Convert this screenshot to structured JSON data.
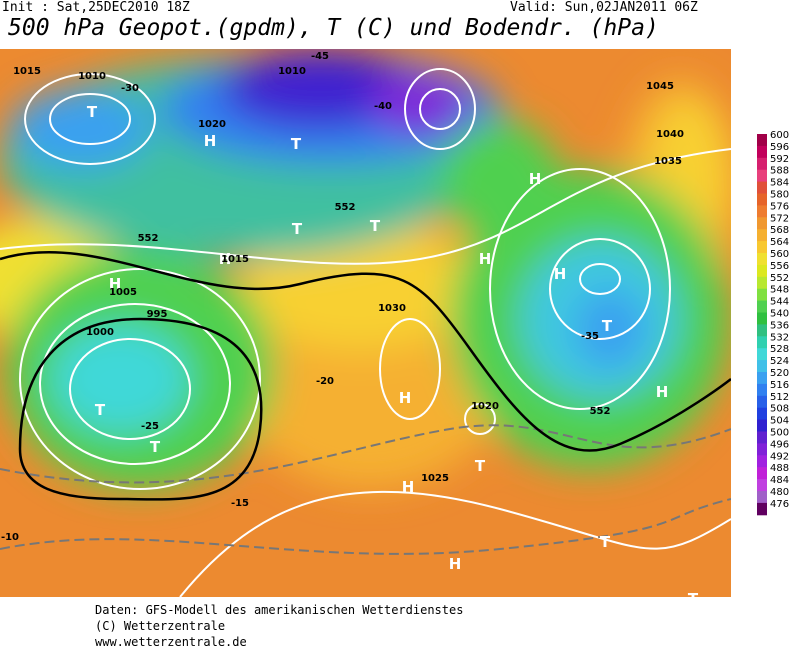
{
  "header": {
    "init": "Init : Sat,25DEC2010 18Z",
    "valid": "Valid: Sun,02JAN2011 06Z",
    "title": "500 hPa Geopot.(gpdm), T (C) und Bodendr. (hPa)"
  },
  "map": {
    "labels": [
      "T",
      "T",
      "T",
      "T",
      "T",
      "T",
      "H",
      "H",
      "H",
      "H",
      "H",
      "H",
      "H",
      "H",
      "T",
      "T",
      "H",
      "H",
      "T",
      "T",
      "1010",
      "1005",
      "995",
      "1000",
      "1020",
      "1015",
      "1030",
      "1025",
      "1020",
      "1015",
      "1010",
      "1045",
      "1040",
      "1035",
      "-30",
      "-25",
      "-20",
      "-15",
      "-10",
      "-35",
      "-40",
      "-45",
      "552",
      "552",
      "552"
    ]
  },
  "colorbar": {
    "levels": [
      600,
      596,
      592,
      588,
      584,
      580,
      576,
      572,
      568,
      564,
      560,
      556,
      552,
      548,
      544,
      540,
      536,
      532,
      528,
      524,
      520,
      516,
      512,
      508,
      504,
      500,
      496,
      492,
      488,
      484,
      480,
      476
    ],
    "colors": [
      "#a10048",
      "#c2005b",
      "#d6206e",
      "#e8407c",
      "#e0503a",
      "#e6642a",
      "#ee7c30",
      "#f09830",
      "#f5b030",
      "#f8c830",
      "#f0e030",
      "#dce820",
      "#b8e830",
      "#80e040",
      "#50d050",
      "#30c040",
      "#30c080",
      "#30d0b0",
      "#40d8d8",
      "#40c0e8",
      "#3aa0f0",
      "#3080f0",
      "#2860e8",
      "#2040e0",
      "#3020d0",
      "#6020d0",
      "#8020d8",
      "#a020e0",
      "#c020d8",
      "#c040e0",
      "#a060c8",
      "#600060"
    ]
  },
  "footer": {
    "source": "Daten: GFS-Modell des amerikanischen Wetterdienstes",
    "copyright": "(C) Wetterzentrale",
    "url": "www.wetterzentrale.de"
  }
}
